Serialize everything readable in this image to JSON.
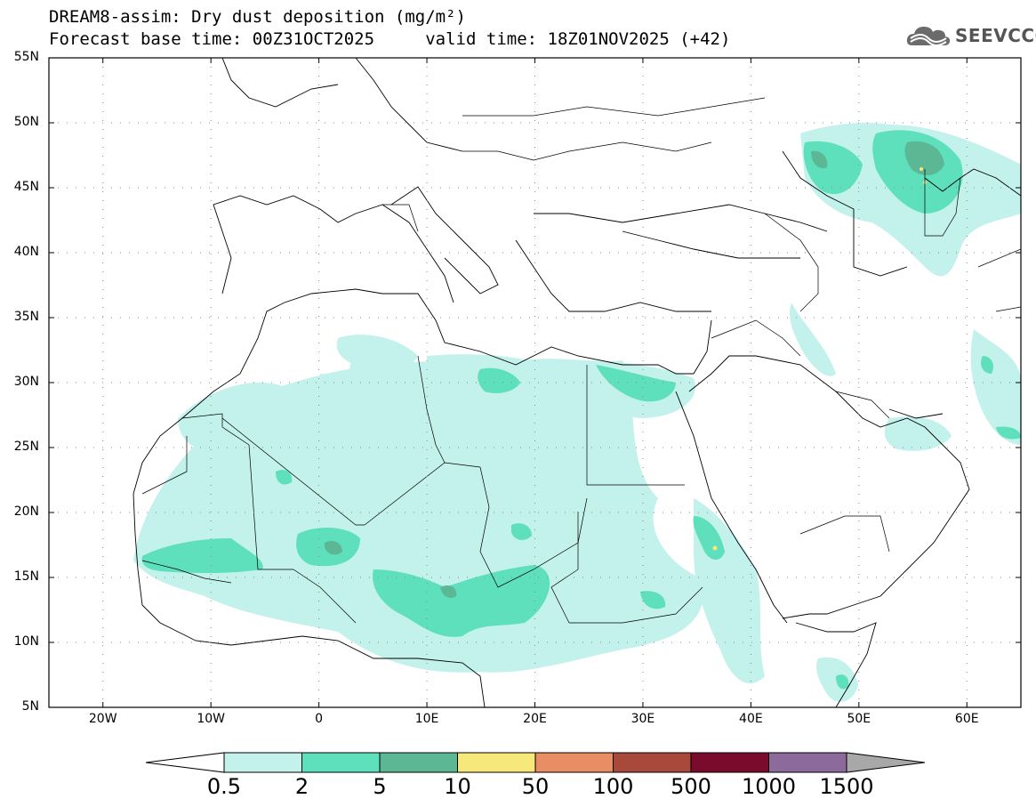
{
  "title": {
    "line1": "DREAM8-assim: Dry dust deposition (mg/m²)",
    "line2": "Forecast base time: 00Z31OCT2025     valid time: 18Z01NOV2025 (+42)"
  },
  "brand": {
    "icon": "cloud-logo-icon",
    "text": "SEEVCCC",
    "color": "#555555"
  },
  "map": {
    "projection": "lat-lon",
    "lon_range": [
      -25,
      65
    ],
    "lat_range": [
      5,
      55
    ],
    "grid": true,
    "y_ticks": [
      {
        "lat": 55,
        "label": "55N"
      },
      {
        "lat": 50,
        "label": "50N"
      },
      {
        "lat": 45,
        "label": "45N"
      },
      {
        "lat": 40,
        "label": "40N"
      },
      {
        "lat": 35,
        "label": "35N"
      },
      {
        "lat": 30,
        "label": "30N"
      },
      {
        "lat": 25,
        "label": "25N"
      },
      {
        "lat": 20,
        "label": "20N"
      },
      {
        "lat": 15,
        "label": "15N"
      },
      {
        "lat": 10,
        "label": "10N"
      },
      {
        "lat": 5,
        "label": "5N"
      }
    ],
    "x_ticks": [
      {
        "lon": -20,
        "label": "20W"
      },
      {
        "lon": -10,
        "label": "10W"
      },
      {
        "lon": 0,
        "label": "0"
      },
      {
        "lon": 10,
        "label": "10E"
      },
      {
        "lon": 20,
        "label": "20E"
      },
      {
        "lon": 30,
        "label": "30E"
      },
      {
        "lon": 40,
        "label": "40E"
      },
      {
        "lon": 50,
        "label": "50E"
      },
      {
        "lon": 60,
        "label": "60E"
      }
    ]
  },
  "colorbar": {
    "levels": [
      "0.5",
      "2",
      "5",
      "10",
      "50",
      "100",
      "500",
      "1000",
      "1500"
    ],
    "colors": [
      "#c3f1ec",
      "#5ee0bd",
      "#5cb894",
      "#f6e87a",
      "#e98d64",
      "#a8493c",
      "#7a0b2c",
      "#8d6a9c"
    ],
    "under_color": "#ffffff",
    "over_color": "#a8a8a8"
  }
}
